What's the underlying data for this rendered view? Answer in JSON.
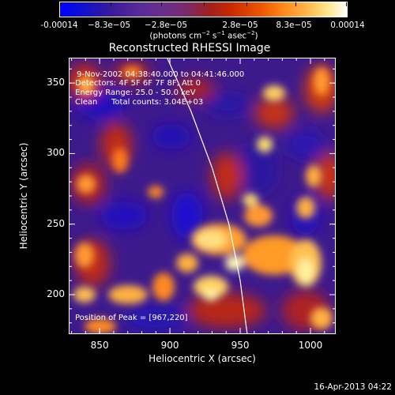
{
  "colorbar": {
    "tick_labels": [
      "-0.00014",
      "−8.3e−05",
      "−2.8e−05",
      "2.8e−05",
      "8.3e−05",
      "0.00014"
    ],
    "units_prefix": "(photons cm",
    "units_exp1": "−2",
    "units_mid1": " s",
    "units_exp2": "−1",
    "units_mid2": " asec",
    "units_exp3": "−2",
    "units_suffix": ")"
  },
  "chart_data": {
    "type": "heatmap",
    "title": "Reconstructed RHESSI Image",
    "xlabel": "Heliocentric X (arcsec)",
    "ylabel": "Heliocentric Y (arcsec)",
    "xlim": [
      828,
      1018
    ],
    "ylim": [
      172,
      368
    ],
    "x_ticks": [
      "850",
      "900",
      "950",
      "1000"
    ],
    "y_ticks": [
      "200",
      "250",
      "300",
      "350"
    ],
    "colorbar_range": [
      -0.00014,
      0.00014
    ],
    "limb_line": [
      [
        898,
        368
      ],
      [
        915,
        330
      ],
      [
        930,
        290
      ],
      [
        942,
        250
      ],
      [
        950,
        210
      ],
      [
        955,
        172
      ]
    ],
    "peak": [
      967,
      220
    ]
  },
  "annotations": {
    "time_range": "9-Nov-2002 04:38:40.000 to 04:41:46.000",
    "detectors": "Detectors: 4F 5F 6F 7F 8F, Att 0",
    "energy": "Energy Range: 25.0 - 50.0 keV",
    "clean": "Clean",
    "total_counts": "Total counts: 3.04E+03",
    "peak_position": "Position of Peak = [967,220]"
  },
  "footer": {
    "timestamp": "16-Apr-2013 04:22"
  }
}
